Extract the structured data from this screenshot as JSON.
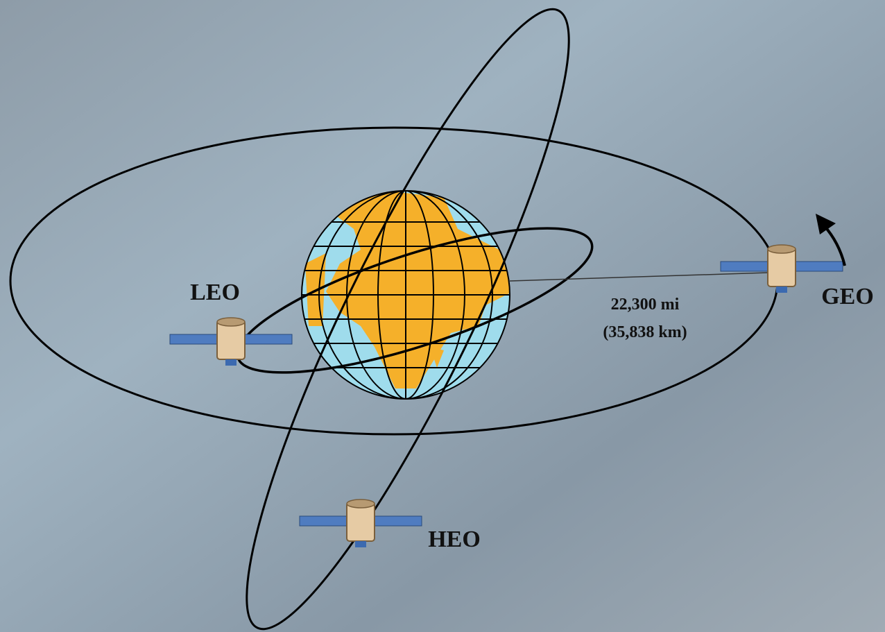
{
  "orbits": [
    {
      "label": "LEO"
    },
    {
      "label": "GEO"
    },
    {
      "label": "HEO"
    }
  ],
  "distance": {
    "miles": "22,300 mi",
    "km": "(35,838 km)"
  }
}
